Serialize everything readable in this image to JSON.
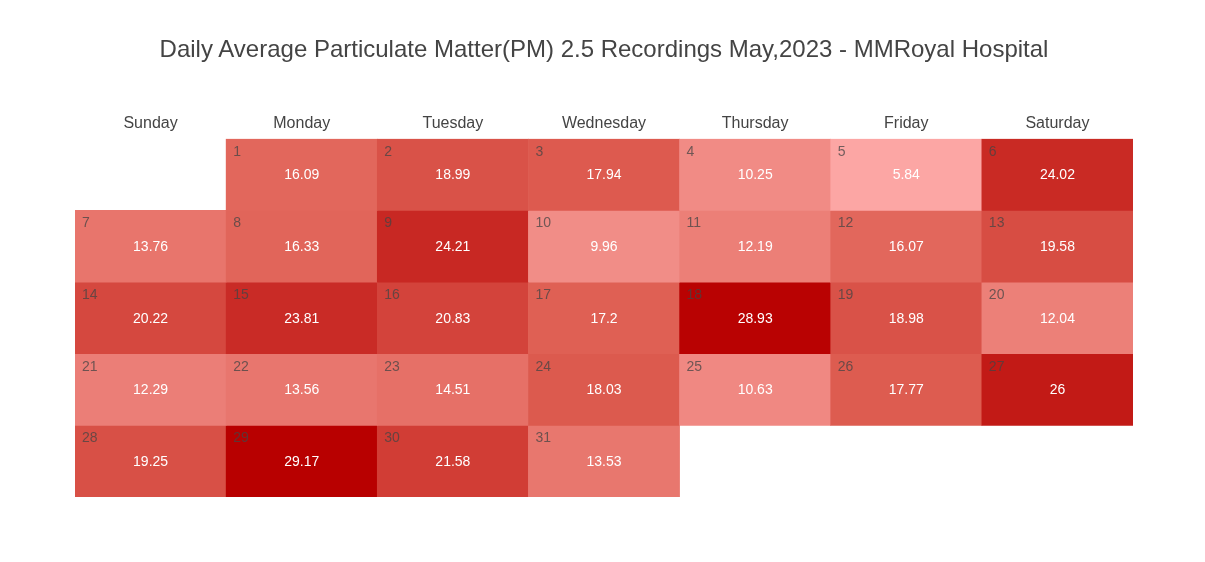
{
  "chart_data": {
    "type": "heatmap",
    "title": "Daily Average Particulate Matter(PM) 2.5 Recordings May,2023 - MMRoyal Hospital",
    "categories": [
      "Sunday",
      "Monday",
      "Tuesday",
      "Wednesday",
      "Thursday",
      "Friday",
      "Saturday"
    ],
    "y_categories": [
      null,
      null,
      null,
      null,
      null
    ],
    "cells": [
      [
        null,
        16.09,
        18.99,
        17.94,
        10.25,
        5.84,
        24.02
      ],
      [
        13.76,
        16.33,
        24.21,
        9.96,
        12.19,
        16.07,
        19.58
      ],
      [
        20.22,
        23.81,
        20.83,
        17.2,
        28.93,
        18.98,
        12.04
      ],
      [
        12.29,
        13.56,
        14.51,
        18.03,
        10.63,
        17.77,
        26
      ],
      [
        19.25,
        29.17,
        21.58,
        13.53,
        null,
        null,
        null
      ]
    ],
    "data_labels": true,
    "annotations": [
      "1",
      "2",
      "3",
      "4",
      "5",
      "6",
      "7",
      "8",
      "9",
      "10",
      "11",
      "12",
      "13",
      "14",
      "15",
      "16",
      "17",
      "18",
      "19",
      "20",
      "21",
      "22",
      "23",
      "24",
      "25",
      "26",
      "27",
      "28",
      "29",
      "30",
      "31"
    ]
  }
}
